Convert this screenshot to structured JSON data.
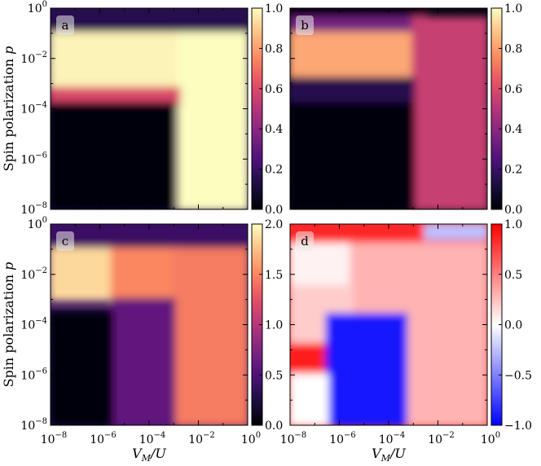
{
  "chart_data": [
    {
      "type": "heatmap",
      "panel_label": "a",
      "colormap": "magma",
      "xlabel": "",
      "ylabel": "Spin polarization p",
      "x_scale": "log",
      "y_scale": "log",
      "xlim": [
        1e-08,
        1
      ],
      "ylim": [
        1e-08,
        1
      ],
      "y_ticks": [
        "10^0",
        "10^-2",
        "10^-4",
        "10^-6",
        "10^-8"
      ],
      "colorbar": {
        "ticks": [
          "0.0",
          "0.2",
          "0.4",
          "0.6",
          "0.8",
          "1.0"
        ],
        "range": [
          0,
          1
        ]
      },
      "regions": [
        {
          "x": [
            -8,
            0
          ],
          "y": [
            -1.0,
            0
          ],
          "value": 0.15
        },
        {
          "x": [
            -8,
            -2.8
          ],
          "y": [
            -3.2,
            -1.0
          ],
          "value": 0.98
        },
        {
          "x": [
            -2.8,
            0
          ],
          "y": [
            -8,
            -1.0
          ],
          "value": 1.0
        },
        {
          "x": [
            -8,
            -2.8
          ],
          "y": [
            -3.8,
            -3.2
          ],
          "value": 0.6
        },
        {
          "x": [
            -8,
            -3.0
          ],
          "y": [
            -8,
            -3.8
          ],
          "value": 0.02
        }
      ]
    },
    {
      "type": "heatmap",
      "panel_label": "b",
      "colormap": "magma",
      "xlabel": "",
      "ylabel": "",
      "x_scale": "log",
      "y_scale": "log",
      "xlim": [
        1e-08,
        1
      ],
      "ylim": [
        1e-08,
        1
      ],
      "colorbar": {
        "ticks": [
          "0.0",
          "0.2",
          "0.4",
          "0.6",
          "0.8",
          "1.0"
        ],
        "range": [
          0,
          1
        ]
      },
      "regions": [
        {
          "x": [
            -8,
            -2.5
          ],
          "y": [
            -0.4,
            0
          ],
          "value": 0.03
        },
        {
          "x": [
            -8,
            -2.5
          ],
          "y": [
            -1.0,
            -0.4
          ],
          "value": 0.35
        },
        {
          "x": [
            -8,
            -3.0
          ],
          "y": [
            -2.8,
            -1.0
          ],
          "value": 0.82
        },
        {
          "x": [
            -3.0,
            0
          ],
          "y": [
            -8,
            -0.4
          ],
          "value": 0.55
        },
        {
          "x": [
            -8,
            -3.0
          ],
          "y": [
            -3.8,
            -2.8
          ],
          "value": 0.15
        },
        {
          "x": [
            -8,
            -3.0
          ],
          "y": [
            -8,
            -3.8
          ],
          "value": 0.02
        }
      ]
    },
    {
      "type": "heatmap",
      "panel_label": "c",
      "colormap": "magma",
      "xlabel": "V_M/U",
      "ylabel": "Spin polarization p",
      "x_scale": "log",
      "y_scale": "log",
      "xlim": [
        1e-08,
        1
      ],
      "ylim": [
        1e-08,
        1
      ],
      "x_ticks": [
        "10^-8",
        "10^-6",
        "10^-4",
        "10^-2",
        "10^0"
      ],
      "y_ticks": [
        "10^0",
        "10^-2",
        "10^-4",
        "10^-6",
        "10^-8"
      ],
      "colorbar": {
        "ticks": [
          "0.0",
          "0.5",
          "1.0",
          "1.5",
          "2.0"
        ],
        "range": [
          0,
          2
        ]
      },
      "regions": [
        {
          "x": [
            -8,
            0
          ],
          "y": [
            -1.0,
            0
          ],
          "value": 0.4
        },
        {
          "x": [
            -8,
            -5.5
          ],
          "y": [
            -3.0,
            -1.0
          ],
          "value": 1.85
        },
        {
          "x": [
            -5.5,
            -3.0
          ],
          "y": [
            -3.0,
            -1.0
          ],
          "value": 1.5
        },
        {
          "x": [
            -3.0,
            0
          ],
          "y": [
            -8,
            -1.0
          ],
          "value": 1.45
        },
        {
          "x": [
            -5.5,
            -3.0
          ],
          "y": [
            -8,
            -3.0
          ],
          "value": 0.6
        },
        {
          "x": [
            -8,
            -5.5
          ],
          "y": [
            -8,
            -3.5
          ],
          "value": 0.02
        }
      ]
    },
    {
      "type": "heatmap",
      "panel_label": "d",
      "colormap": "bwr",
      "xlabel": "V_M/U",
      "ylabel": "",
      "x_scale": "log",
      "y_scale": "log",
      "xlim": [
        1e-08,
        1
      ],
      "ylim": [
        1e-08,
        1
      ],
      "x_ticks": [
        "10^-8",
        "10^-6",
        "10^-4",
        "10^-2",
        "10^0"
      ],
      "colorbar": {
        "ticks": [
          "1.0",
          "0.5",
          "0.0",
          "−0.5",
          "−1.0"
        ],
        "range": [
          -1,
          1
        ]
      },
      "regions": [
        {
          "x": [
            -8,
            -2.5
          ],
          "y": [
            -0.8,
            0
          ],
          "value": 0.85
        },
        {
          "x": [
            -2.5,
            0
          ],
          "y": [
            -0.6,
            0
          ],
          "value": -0.25
        },
        {
          "x": [
            -8,
            -5.5
          ],
          "y": [
            -2.5,
            -0.8
          ],
          "value": 0.05
        },
        {
          "x": [
            -5.5,
            0
          ],
          "y": [
            -8,
            -0.8
          ],
          "value": 0.3
        },
        {
          "x": [
            -8,
            -5.5
          ],
          "y": [
            -6.0,
            -2.5
          ],
          "value": 0.2
        },
        {
          "x": [
            -8,
            -6.0
          ],
          "y": [
            -6.0,
            -4.8
          ],
          "value": 0.9
        },
        {
          "x": [
            -6.5,
            -3.3
          ],
          "y": [
            -8,
            -3.6
          ],
          "value": -0.9
        },
        {
          "x": [
            -8,
            -6.5
          ],
          "y": [
            -8,
            -6.0
          ],
          "value": 0.0
        }
      ]
    }
  ]
}
